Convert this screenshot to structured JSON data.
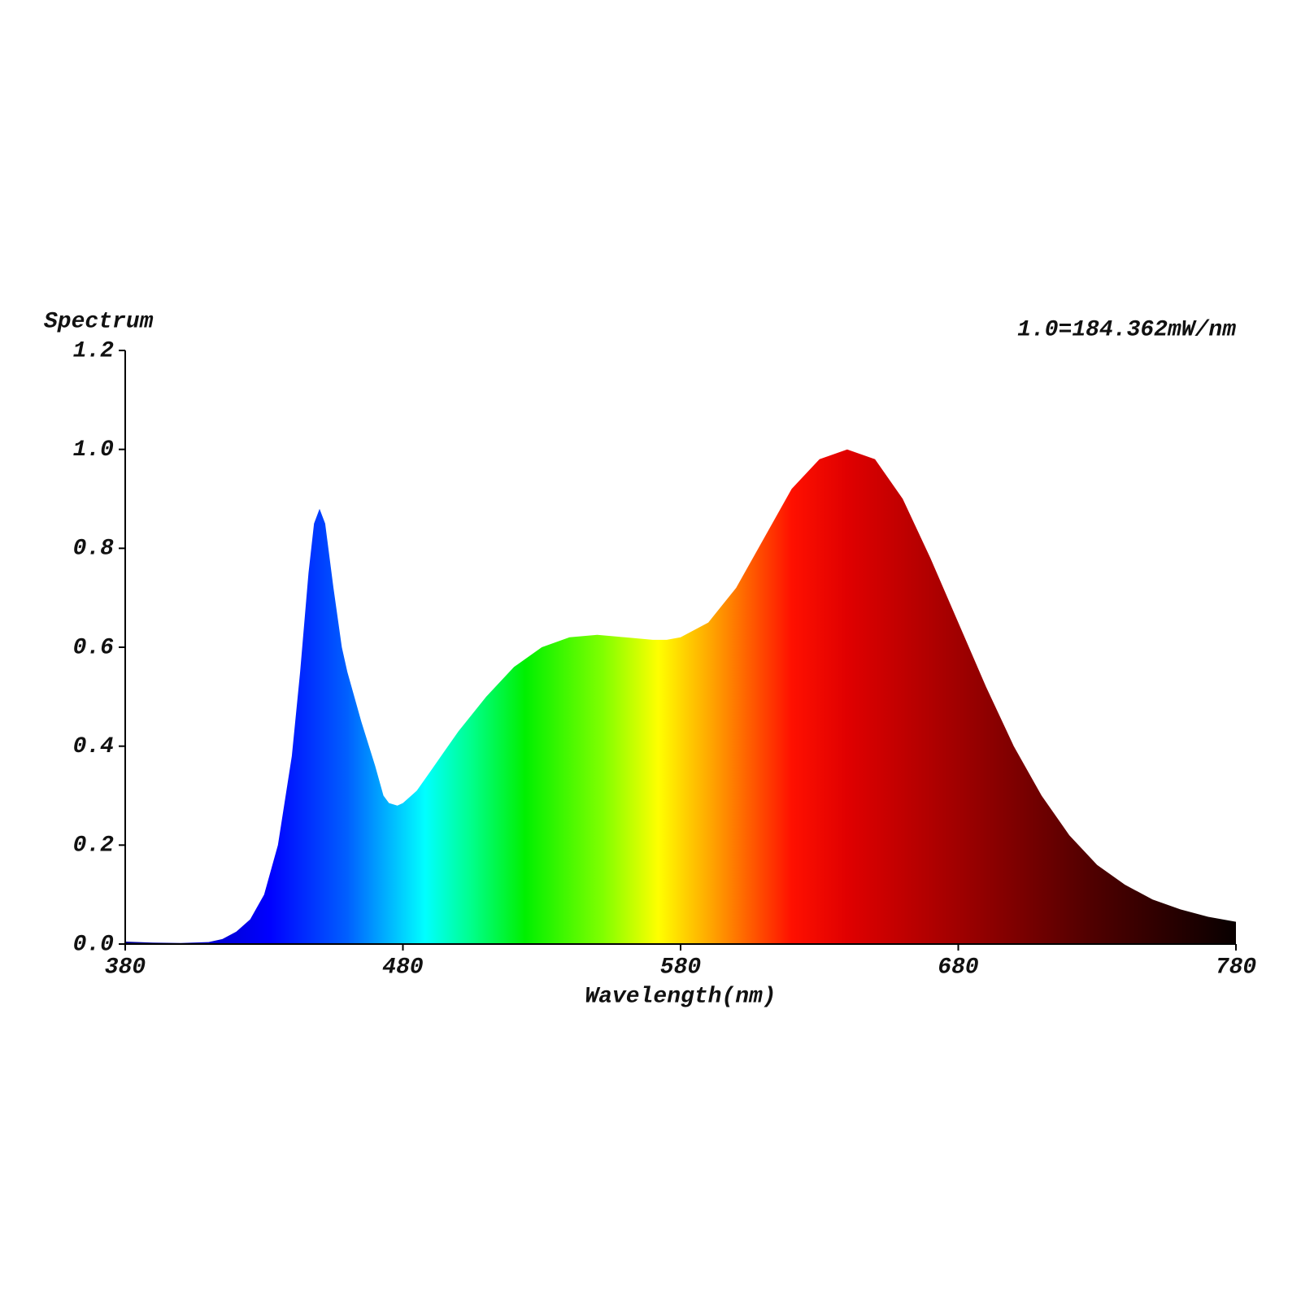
{
  "chart_data": {
    "type": "area",
    "ylabel": "Spectrum",
    "annotation": "1.0=184.362mW/nm",
    "xlabel": "Wavelength(nm)",
    "x": [
      380,
      390,
      400,
      410,
      415,
      420,
      425,
      430,
      435,
      440,
      443,
      446,
      448,
      450,
      452,
      455,
      458,
      460,
      465,
      470,
      473,
      475,
      478,
      480,
      485,
      490,
      495,
      500,
      510,
      520,
      530,
      540,
      550,
      560,
      570,
      575,
      580,
      590,
      600,
      610,
      620,
      630,
      640,
      650,
      660,
      670,
      680,
      690,
      700,
      710,
      720,
      730,
      740,
      750,
      760,
      770,
      780
    ],
    "values": [
      0.005,
      0.003,
      0.002,
      0.004,
      0.01,
      0.025,
      0.05,
      0.1,
      0.2,
      0.38,
      0.55,
      0.75,
      0.85,
      0.88,
      0.85,
      0.72,
      0.6,
      0.55,
      0.45,
      0.36,
      0.3,
      0.285,
      0.28,
      0.285,
      0.31,
      0.35,
      0.39,
      0.43,
      0.5,
      0.56,
      0.6,
      0.62,
      0.625,
      0.62,
      0.615,
      0.615,
      0.62,
      0.65,
      0.72,
      0.82,
      0.92,
      0.98,
      1.0,
      0.98,
      0.9,
      0.78,
      0.65,
      0.52,
      0.4,
      0.3,
      0.22,
      0.16,
      0.12,
      0.09,
      0.07,
      0.055,
      0.045
    ],
    "xlim": [
      380,
      780
    ],
    "xticks": [
      380,
      480,
      580,
      680,
      780
    ],
    "ylim": [
      0,
      1.2
    ],
    "yticks": [
      {
        "value": 0,
        "label": "0.0"
      },
      0.2,
      0.4,
      0.6,
      0.8,
      {
        "value": 1,
        "label": "1.0"
      },
      1.2
    ],
    "grid": false
  }
}
